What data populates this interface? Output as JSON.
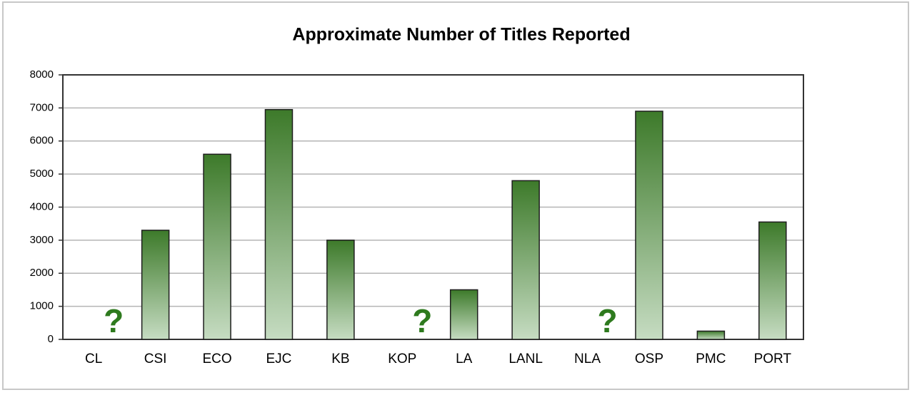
{
  "chart_data": {
    "type": "bar",
    "title": "Approximate Number of Titles Reported",
    "categories": [
      "CL",
      "CSI",
      "ECO",
      "EJC",
      "KB",
      "KOP",
      "LA",
      "LANL",
      "NLA",
      "OSP",
      "PMC",
      "PORT"
    ],
    "values": [
      null,
      3300,
      5600,
      6950,
      3000,
      null,
      1500,
      4800,
      null,
      6900,
      250,
      3550
    ],
    "color": "#3d7a2a",
    "annotations": [
      {
        "text": "?",
        "category": "CL"
      },
      {
        "text": "?",
        "category": "KOP"
      },
      {
        "text": "?",
        "category": "NLA"
      }
    ],
    "annotation_color": "#2e7a1e",
    "ylim": [
      0,
      8000
    ],
    "yticks": [
      0,
      1000,
      2000,
      3000,
      4000,
      5000,
      6000,
      7000,
      8000
    ],
    "grid": true
  }
}
